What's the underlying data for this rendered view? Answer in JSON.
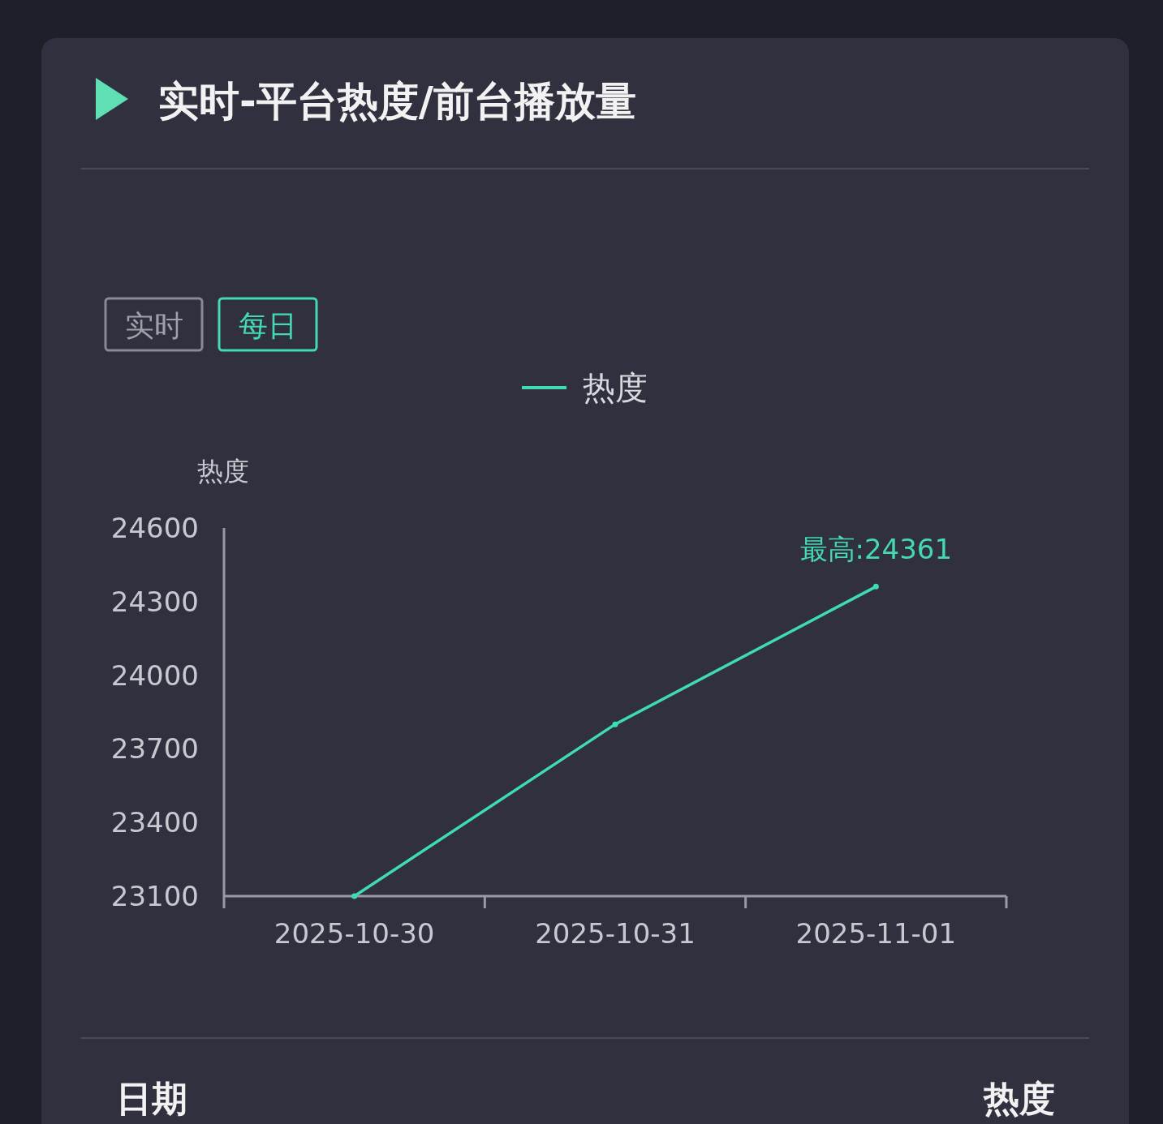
{
  "chart_data": {
    "type": "line",
    "title": "实时-平台热度/前台播放量",
    "ylabel": "热度",
    "categories": [
      "2025-10-30",
      "2025-10-31",
      "2025-11-01"
    ],
    "series": [
      {
        "name": "热度",
        "color": "#3fdcb4",
        "values": [
          23100,
          23800,
          24361
        ]
      }
    ],
    "ylim": [
      23100,
      24600
    ],
    "yticks": [
      23100,
      23400,
      23700,
      24000,
      24300,
      24600
    ],
    "legend": "top",
    "grid": false,
    "marker": "circle",
    "annotations": [
      {
        "text": "最高:24361",
        "x": "2025-11-01",
        "y": 24361
      },
      "实时",
      "每日",
      "日期",
      "热度"
    ]
  }
}
